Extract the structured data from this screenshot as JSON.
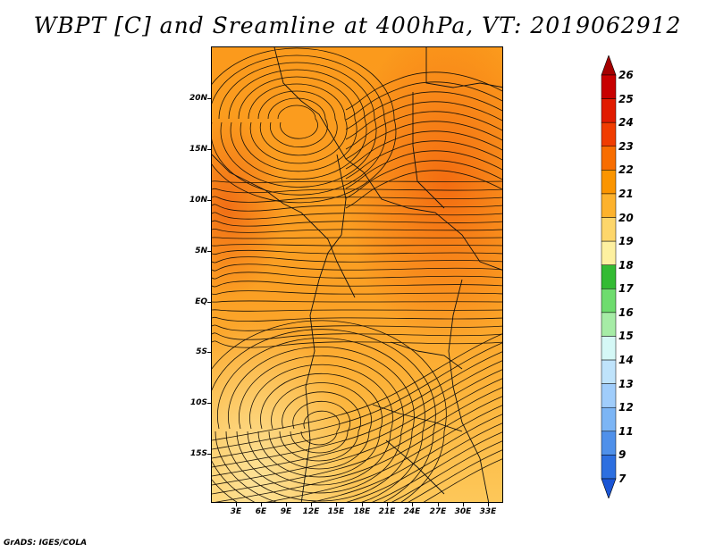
{
  "title": "WBPT [C] and Sreamline at 400hPa, VT: 2019062912",
  "credit": "GrADS: IGES/COLA",
  "map": {
    "variable": "WBPT [C]",
    "level": "400hPa",
    "valid_time": "2019062912",
    "lat_labels": [
      "20N",
      "15N",
      "10N",
      "5N",
      "EQ",
      "5S",
      "10S",
      "15S"
    ],
    "lon_labels": [
      "3E",
      "6E",
      "9E",
      "12E",
      "15E",
      "18E",
      "21E",
      "24E",
      "27E",
      "30E",
      "33E"
    ]
  },
  "colorbar": {
    "labels": [
      "26",
      "25",
      "24",
      "23",
      "22",
      "21",
      "20",
      "19",
      "18",
      "17",
      "16",
      "15",
      "14",
      "13",
      "12",
      "11",
      "9",
      "7"
    ],
    "colors": [
      "#a50000",
      "#c80000",
      "#e11b00",
      "#f03c00",
      "#f86d00",
      "#fb9500",
      "#fdb22d",
      "#fdd66b",
      "#fdf0a0",
      "#33bb33",
      "#6edc6e",
      "#a6eca6",
      "#d5f8f6",
      "#bfe3fb",
      "#a0cdfb",
      "#7cb5f5",
      "#4f90ea",
      "#2d6fe0",
      "#1a55d5"
    ]
  }
}
